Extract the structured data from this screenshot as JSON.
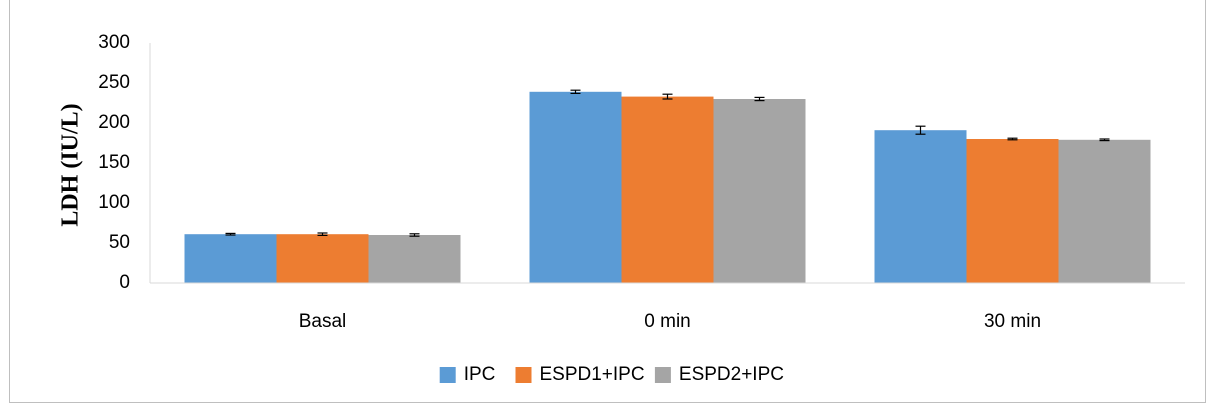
{
  "colors": {
    "series": [
      "#5b9bd5",
      "#ed7d31",
      "#a5a5a5"
    ],
    "axis": "#d9d9d9",
    "text": "#000000"
  },
  "chart_data": {
    "type": "bar",
    "title": "",
    "xlabel": "",
    "ylabel": "LDH (IU/L)",
    "ylim": [
      0,
      300
    ],
    "yticks": [
      0,
      50,
      100,
      150,
      200,
      250,
      300
    ],
    "categories": [
      "Basal",
      "0 min",
      "30 min"
    ],
    "series": [
      {
        "name": "IPC",
        "values": [
          61,
          239,
          191
        ],
        "errors": [
          1,
          2,
          5
        ]
      },
      {
        "name": "ESPD1+IPC",
        "values": [
          61,
          233,
          180
        ],
        "errors": [
          1.5,
          3,
          1
        ]
      },
      {
        "name": "ESPD2+IPC",
        "values": [
          60,
          230,
          179
        ],
        "errors": [
          1.5,
          2,
          1
        ]
      }
    ],
    "grid": false,
    "legend_position": "bottom"
  }
}
